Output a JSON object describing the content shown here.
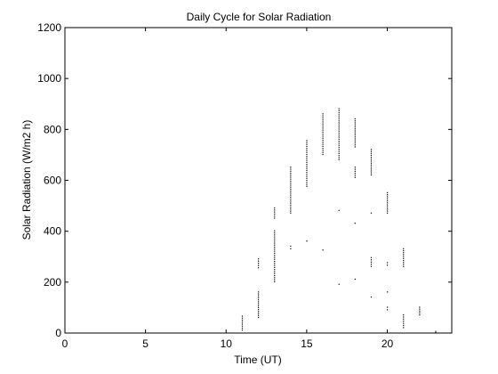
{
  "chart_data": {
    "type": "scatter",
    "title": "Daily Cycle for Solar Radiation",
    "xlabel": "Time (UT)",
    "ylabel": "Solar Radiation (W/m2 h)",
    "xlim": [
      0,
      24
    ],
    "ylim": [
      0,
      1200
    ],
    "xticks": [
      0,
      5,
      10,
      15,
      20
    ],
    "yticks": [
      0,
      200,
      400,
      600,
      800,
      1000,
      1200
    ],
    "grid": false,
    "marker_color": "#000000",
    "clusters": [
      {
        "x": 11,
        "y_min": 10,
        "y_max": 65
      },
      {
        "x": 12,
        "y_min": 60,
        "y_max": 160
      },
      {
        "x": 12,
        "y_min": 255,
        "y_max": 290
      },
      {
        "x": 13,
        "y_min": 200,
        "y_max": 400
      },
      {
        "x": 13,
        "y_min": 450,
        "y_max": 490
      },
      {
        "x": 14,
        "y_min": 330,
        "y_max": 340
      },
      {
        "x": 14,
        "y_min": 470,
        "y_max": 650
      },
      {
        "x": 15,
        "y_min": 360,
        "y_max": 360
      },
      {
        "x": 15,
        "y_min": 575,
        "y_max": 755
      },
      {
        "x": 16,
        "y_min": 325,
        "y_max": 325
      },
      {
        "x": 16,
        "y_min": 700,
        "y_max": 860
      },
      {
        "x": 17,
        "y_min": 190,
        "y_max": 190
      },
      {
        "x": 17,
        "y_min": 480,
        "y_max": 480
      },
      {
        "x": 17,
        "y_min": 680,
        "y_max": 880
      },
      {
        "x": 18,
        "y_min": 210,
        "y_max": 210
      },
      {
        "x": 18,
        "y_min": 430,
        "y_max": 430
      },
      {
        "x": 18,
        "y_min": 610,
        "y_max": 650
      },
      {
        "x": 18,
        "y_min": 730,
        "y_max": 840
      },
      {
        "x": 19,
        "y_min": 140,
        "y_max": 140
      },
      {
        "x": 19,
        "y_min": 260,
        "y_max": 295
      },
      {
        "x": 19,
        "y_min": 470,
        "y_max": 470
      },
      {
        "x": 19,
        "y_min": 620,
        "y_max": 720
      },
      {
        "x": 20,
        "y_min": 90,
        "y_max": 100
      },
      {
        "x": 20,
        "y_min": 160,
        "y_max": 160
      },
      {
        "x": 20,
        "y_min": 265,
        "y_max": 275
      },
      {
        "x": 20,
        "y_min": 470,
        "y_max": 550
      },
      {
        "x": 21,
        "y_min": 20,
        "y_max": 70
      },
      {
        "x": 21,
        "y_min": 260,
        "y_max": 330
      },
      {
        "x": 22,
        "y_min": 70,
        "y_max": 100
      },
      {
        "x": 23,
        "y_min": 0,
        "y_max": 5
      }
    ]
  }
}
